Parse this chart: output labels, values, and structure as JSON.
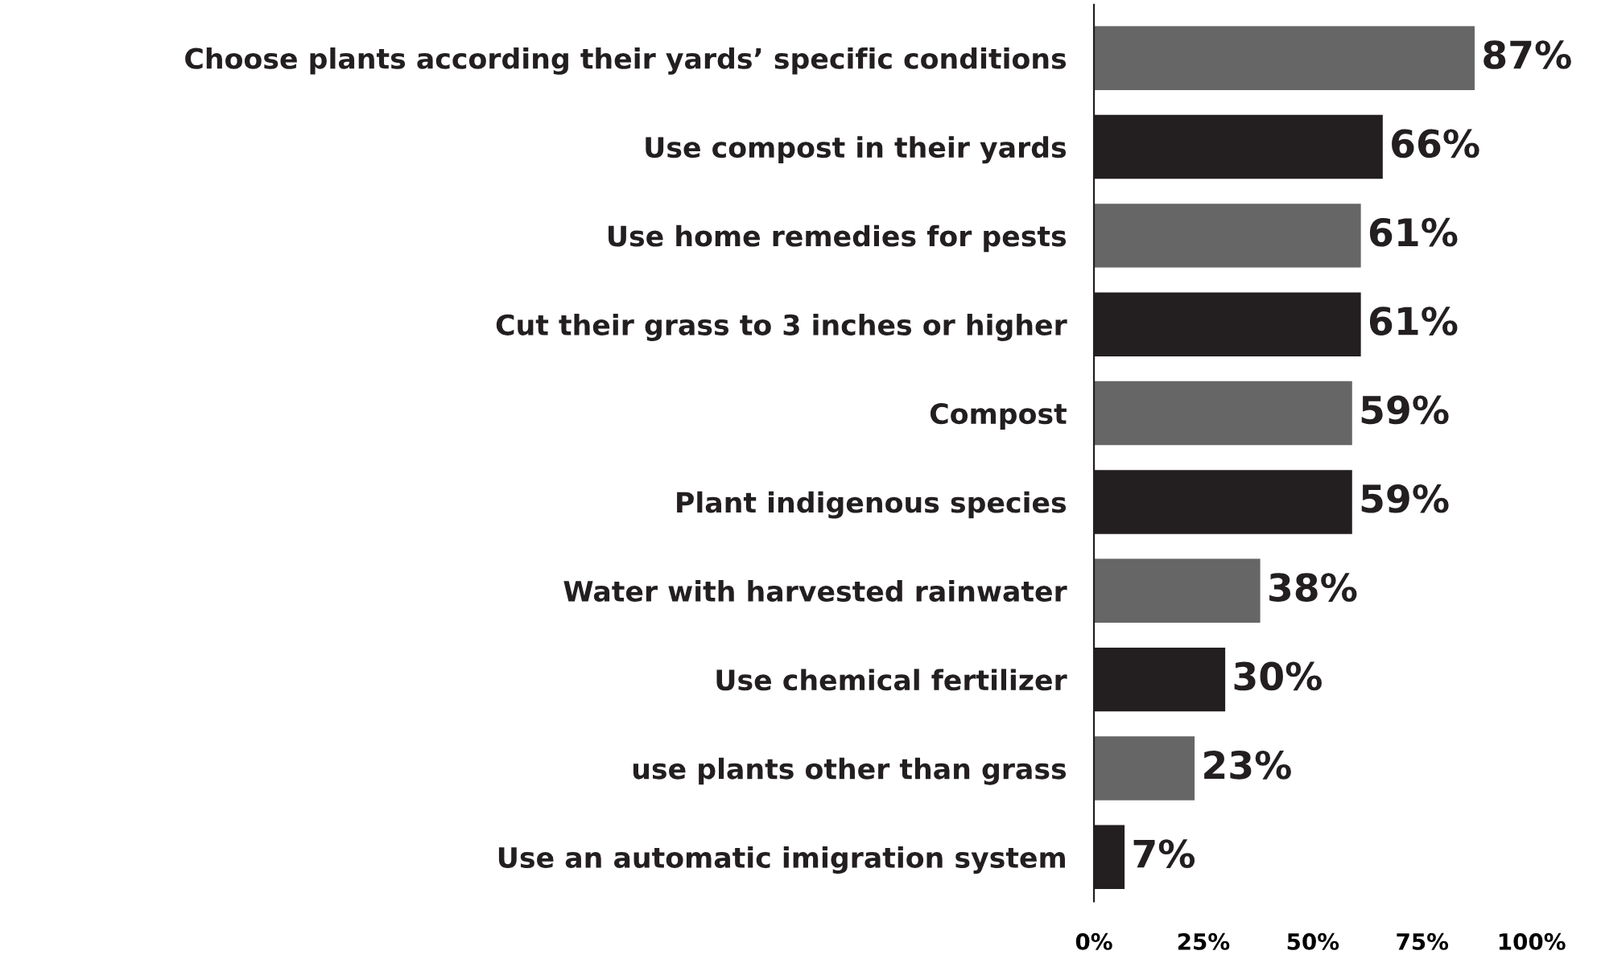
{
  "chart_data": {
    "type": "bar",
    "orientation": "horizontal",
    "categories": [
      "Choose plants according their yards’ specific conditions",
      "Use compost in their yards",
      "Use home remedies for pests",
      "Cut their grass to 3 inches or higher",
      "Compost",
      "Plant indigenous species",
      "Water with harvested rainwater",
      "Use chemical fertilizer",
      "use plants other than grass",
      "Use an automatic imigration system"
    ],
    "values": [
      87,
      66,
      61,
      61,
      59,
      59,
      38,
      30,
      23,
      7
    ],
    "colors": [
      "#666666",
      "#231f20",
      "#666666",
      "#231f20",
      "#666666",
      "#231f20",
      "#666666",
      "#231f20",
      "#666666",
      "#231f20"
    ],
    "value_labels": [
      "87%",
      "66%",
      "61%",
      "61%",
      "59%",
      "59%",
      "38%",
      "30%",
      "23%",
      "7%"
    ],
    "xlim": [
      0,
      100
    ],
    "xticks": [
      {
        "value": 0,
        "label": "0%"
      },
      {
        "value": 25,
        "label": "25%"
      },
      {
        "value": 50,
        "label": "50%"
      },
      {
        "value": 75,
        "label": "75%"
      },
      {
        "value": 100,
        "label": "100%"
      }
    ],
    "grid": false
  }
}
